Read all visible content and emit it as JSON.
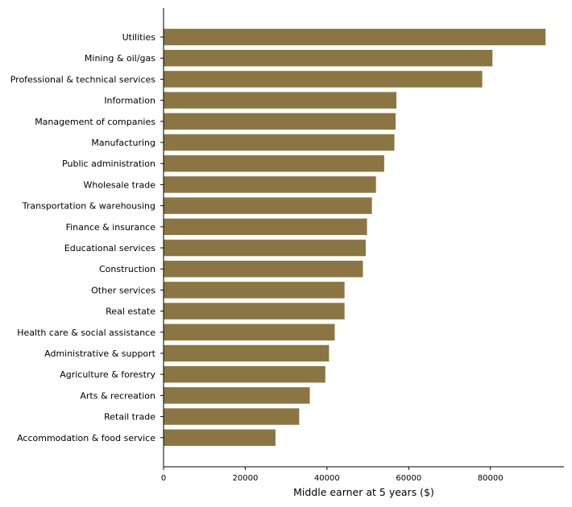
{
  "chart_data": {
    "type": "bar",
    "orientation": "horizontal",
    "title": "",
    "xlabel": "Middle earner at 5 years ($)",
    "ylabel": "",
    "xlim": [
      0,
      98000
    ],
    "xticks": [
      0,
      20000,
      40000,
      60000,
      80000
    ],
    "xtick_labels": [
      "0",
      "20000",
      "40000",
      "60000",
      "80000"
    ],
    "grid": false,
    "bar_color": "#8b7643",
    "categories": [
      "Utilities",
      "Mining & oil/gas",
      "Professional & technical services",
      "Information",
      "Management of companies",
      "Manufacturing",
      "Public administration",
      "Wholesale trade",
      "Transportation & warehousing",
      "Finance & insurance",
      "Educational services",
      "Construction",
      "Other services",
      "Real estate",
      "Health care & social assistance",
      "Administrative & support",
      "Agriculture & forestry",
      "Arts & recreation",
      "Retail trade",
      "Accommodation & food service"
    ],
    "values": [
      93500,
      80500,
      78000,
      57000,
      56800,
      56500,
      54000,
      52000,
      51000,
      49800,
      49500,
      48800,
      44300,
      44300,
      41900,
      40500,
      39600,
      35800,
      33200,
      27400
    ]
  }
}
